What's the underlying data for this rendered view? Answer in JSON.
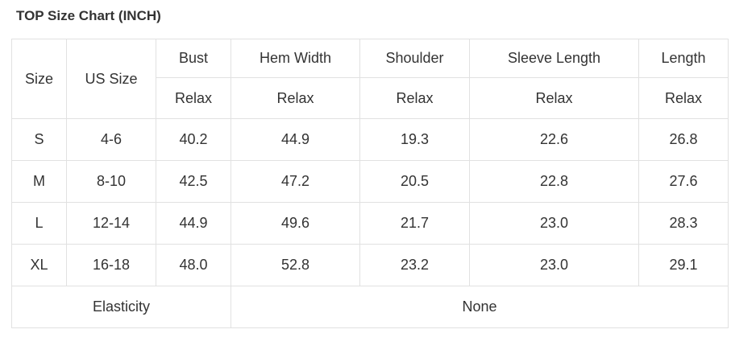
{
  "title": "TOP Size Chart (INCH)",
  "table": {
    "corner_header": "Size",
    "us_size_header": "US Size",
    "measure_headers": [
      "Bust",
      "Hem Width",
      "Shoulder",
      "Sleeve Length",
      "Length"
    ],
    "fit_row": [
      "Relax",
      "Relax",
      "Relax",
      "Relax",
      "Relax"
    ],
    "rows": [
      {
        "size": "S",
        "us_size": "4-6",
        "values": [
          "40.2",
          "44.9",
          "19.3",
          "22.6",
          "26.8"
        ]
      },
      {
        "size": "M",
        "us_size": "8-10",
        "values": [
          "42.5",
          "47.2",
          "20.5",
          "22.8",
          "27.6"
        ]
      },
      {
        "size": "L",
        "us_size": "12-14",
        "values": [
          "44.9",
          "49.6",
          "21.7",
          "23.0",
          "28.3"
        ]
      },
      {
        "size": "XL",
        "us_size": "16-18",
        "values": [
          "48.0",
          "52.8",
          "23.2",
          "23.0",
          "29.1"
        ]
      }
    ],
    "footer": {
      "label": "Elasticity",
      "value": "None"
    }
  },
  "colors": {
    "us_size_header_bg": "#3d3d3d",
    "us_size_header_text": "#ffffff",
    "header_bg": "#f7f7f7",
    "border": "#e1e1e1",
    "text": "#333333"
  }
}
